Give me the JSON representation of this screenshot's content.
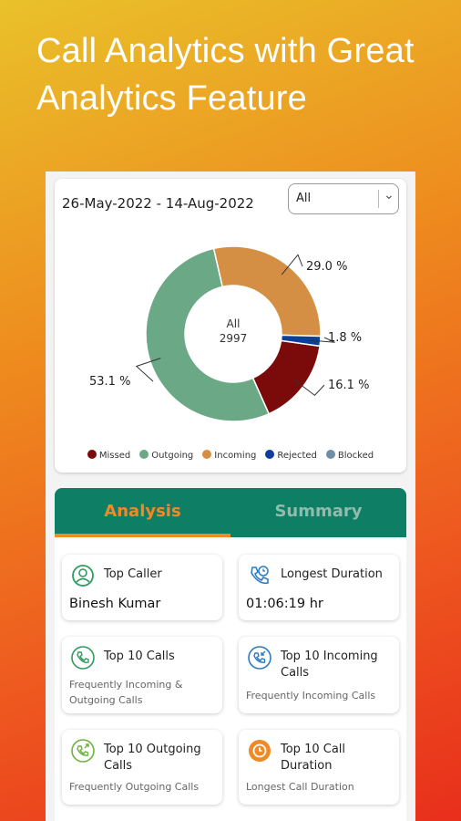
{
  "headline": {
    "line1": "Call Analytics with Great",
    "line2": "Analytics Feature"
  },
  "filter_card": {
    "date_range": "26-May-2022 - 14-Aug-2022",
    "selected_filter": "All"
  },
  "chart_data": {
    "type": "pie",
    "center_label": "All",
    "center_total": "2997",
    "slices": [
      {
        "name": "Missed",
        "percent": 16.1,
        "label": "16.1 %",
        "color": "#7b0a0a"
      },
      {
        "name": "Outgoing",
        "percent": 53.1,
        "label": "53.1 %",
        "color": "#6aa886"
      },
      {
        "name": "Incoming",
        "percent": 29.0,
        "label": "29.0 %",
        "color": "#d58f45"
      },
      {
        "name": "Rejected",
        "percent": 1.8,
        "label": "1.8 %",
        "color": "#0c3f9a"
      },
      {
        "name": "Blocked",
        "percent": 0,
        "label": "",
        "color": "#6d8fa6"
      }
    ],
    "legend": [
      "Missed",
      "Outgoing",
      "Incoming",
      "Rejected",
      "Blocked"
    ]
  },
  "tabs": [
    {
      "label": "Analysis",
      "active": true
    },
    {
      "label": "Summary",
      "active": false
    }
  ],
  "tiles": {
    "top_caller": {
      "title": "Top Caller",
      "value": "Binesh Kumar",
      "icon": "person-icon"
    },
    "longest_duration": {
      "title": "Longest Duration",
      "value": "01:06:19 hr",
      "icon": "phone-clock-icon"
    },
    "top10_calls": {
      "title": "Top 10 Calls",
      "desc": "Frequently Incoming & Outgoing Calls",
      "icon": "phone-icon"
    },
    "top10_incoming": {
      "title": "Top 10 Incoming Calls",
      "desc": "Frequently Incoming Calls",
      "icon": "incoming-call-icon"
    },
    "top10_outgoing": {
      "title": "Top 10 Outgoing Calls",
      "desc": "Frequently Outgoing Calls",
      "icon": "outgoing-call-icon"
    },
    "top10_duration": {
      "title": "Top 10 Call Duration",
      "desc": "Longest Call Duration",
      "icon": "clock-icon"
    }
  },
  "colors": {
    "teal": "#0e7e65",
    "orange": "#f08a27",
    "green_icon": "#2e9b5f",
    "blue_icon": "#2d7bc4"
  }
}
